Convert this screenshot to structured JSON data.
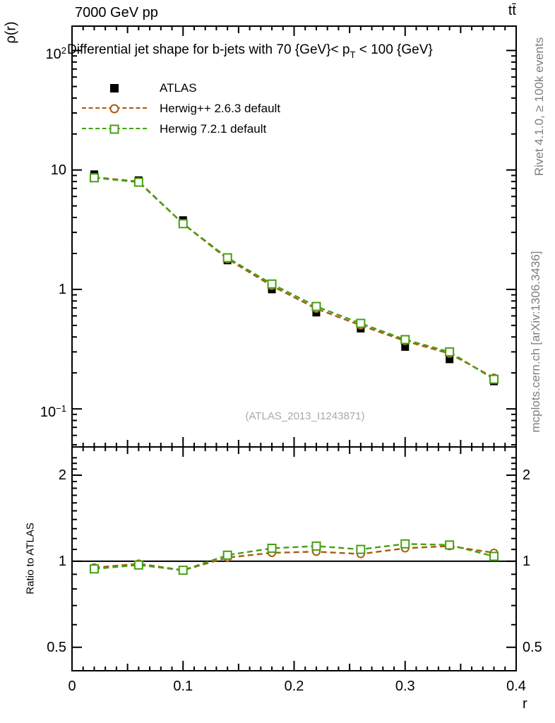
{
  "header": {
    "left": "7000 GeV pp",
    "right": "tt̄"
  },
  "annotations": {
    "watermark": "(ATLAS_2013_I1243871)",
    "right_top": "Rivet 4.1.0, ≥ 100k events",
    "right_bottom": "mcplots.cern.ch [arXiv:1306.3436]"
  },
  "colors": {
    "axis": "#000000",
    "atlas": "#000000",
    "herwigpp": "#a85b10",
    "herwig7": "#45a00f",
    "gray_text": "#7f7f7f",
    "watermark": "#a9a9a9",
    "reference_line": "#000000"
  },
  "legend": {
    "entries": [
      {
        "label": "ATLAS",
        "marker": "filled-square",
        "color": "#000000",
        "line": "none"
      },
      {
        "label": "Herwig++ 2.6.3 default",
        "marker": "open-circle",
        "color": "#a85b10",
        "line": "dashed"
      },
      {
        "label": "Herwig 7.2.1 default",
        "marker": "open-square",
        "color": "#45a00f",
        "line": "dashed"
      }
    ]
  },
  "chart_data": [
    {
      "id": "main",
      "type": "scatter",
      "yscale": "log",
      "title": "Differential jet shape for b-jets with 70 {GeV}< p_T < 100 {GeV}",
      "title_parts": {
        "pre": "Differential jet shape for b-jets with 70 {GeV}< p",
        "sub": "T",
        "post": " < 100 {GeV}"
      },
      "ylabel": "ρ(r)",
      "xlim": [
        0,
        0.4
      ],
      "ylim": [
        0.048,
        160
      ],
      "yticks": [
        100,
        10,
        1,
        0.1
      ],
      "xticks": [
        0,
        0.1,
        0.2,
        0.3,
        0.4
      ],
      "x": [
        0.02,
        0.06,
        0.1,
        0.14,
        0.18,
        0.22,
        0.26,
        0.3,
        0.34,
        0.38
      ],
      "series": [
        {
          "name": "ATLAS",
          "marker": "filled-square",
          "color": "#000000",
          "line": "none",
          "values": [
            9.2,
            8.2,
            3.8,
            1.75,
            1.0,
            0.64,
            0.47,
            0.33,
            0.26,
            0.17
          ]
        },
        {
          "name": "Herwig++ 2.6.3 default",
          "marker": "open-circle",
          "color": "#a85b10",
          "line": "dashed",
          "values": [
            8.7,
            8.0,
            3.55,
            1.8,
            1.07,
            0.69,
            0.5,
            0.37,
            0.29,
            0.182
          ]
        },
        {
          "name": "Herwig 7.2.1 default",
          "marker": "open-square",
          "color": "#45a00f",
          "line": "dashed",
          "values": [
            8.6,
            7.9,
            3.55,
            1.84,
            1.11,
            0.72,
            0.52,
            0.38,
            0.3,
            0.177
          ]
        }
      ],
      "legend_position": "top-left",
      "grid": false
    },
    {
      "id": "ratio",
      "type": "line",
      "yscale": "log",
      "ylabel": "Ratio to ATLAS",
      "xlabel": "r",
      "xlim": [
        0,
        0.4
      ],
      "ylim": [
        0.414,
        2.51
      ],
      "yticks": [
        2,
        1,
        0.5
      ],
      "xticks": [
        0,
        0.1,
        0.2,
        0.3,
        0.4
      ],
      "reference_line": 1,
      "x": [
        0.02,
        0.06,
        0.1,
        0.14,
        0.18,
        0.22,
        0.26,
        0.3,
        0.34,
        0.38
      ],
      "series": [
        {
          "name": "Herwig++ 2.6.3 default",
          "marker": "open-circle",
          "color": "#a85b10",
          "line": "dashed",
          "values": [
            0.95,
            0.98,
            0.93,
            1.03,
            1.07,
            1.08,
            1.06,
            1.11,
            1.13,
            1.07
          ]
        },
        {
          "name": "Herwig 7.2.1 default",
          "marker": "open-square",
          "color": "#45a00f",
          "line": "dashed",
          "values": [
            0.94,
            0.97,
            0.93,
            1.05,
            1.11,
            1.13,
            1.1,
            1.15,
            1.14,
            1.04
          ]
        }
      ],
      "grid": false
    }
  ]
}
